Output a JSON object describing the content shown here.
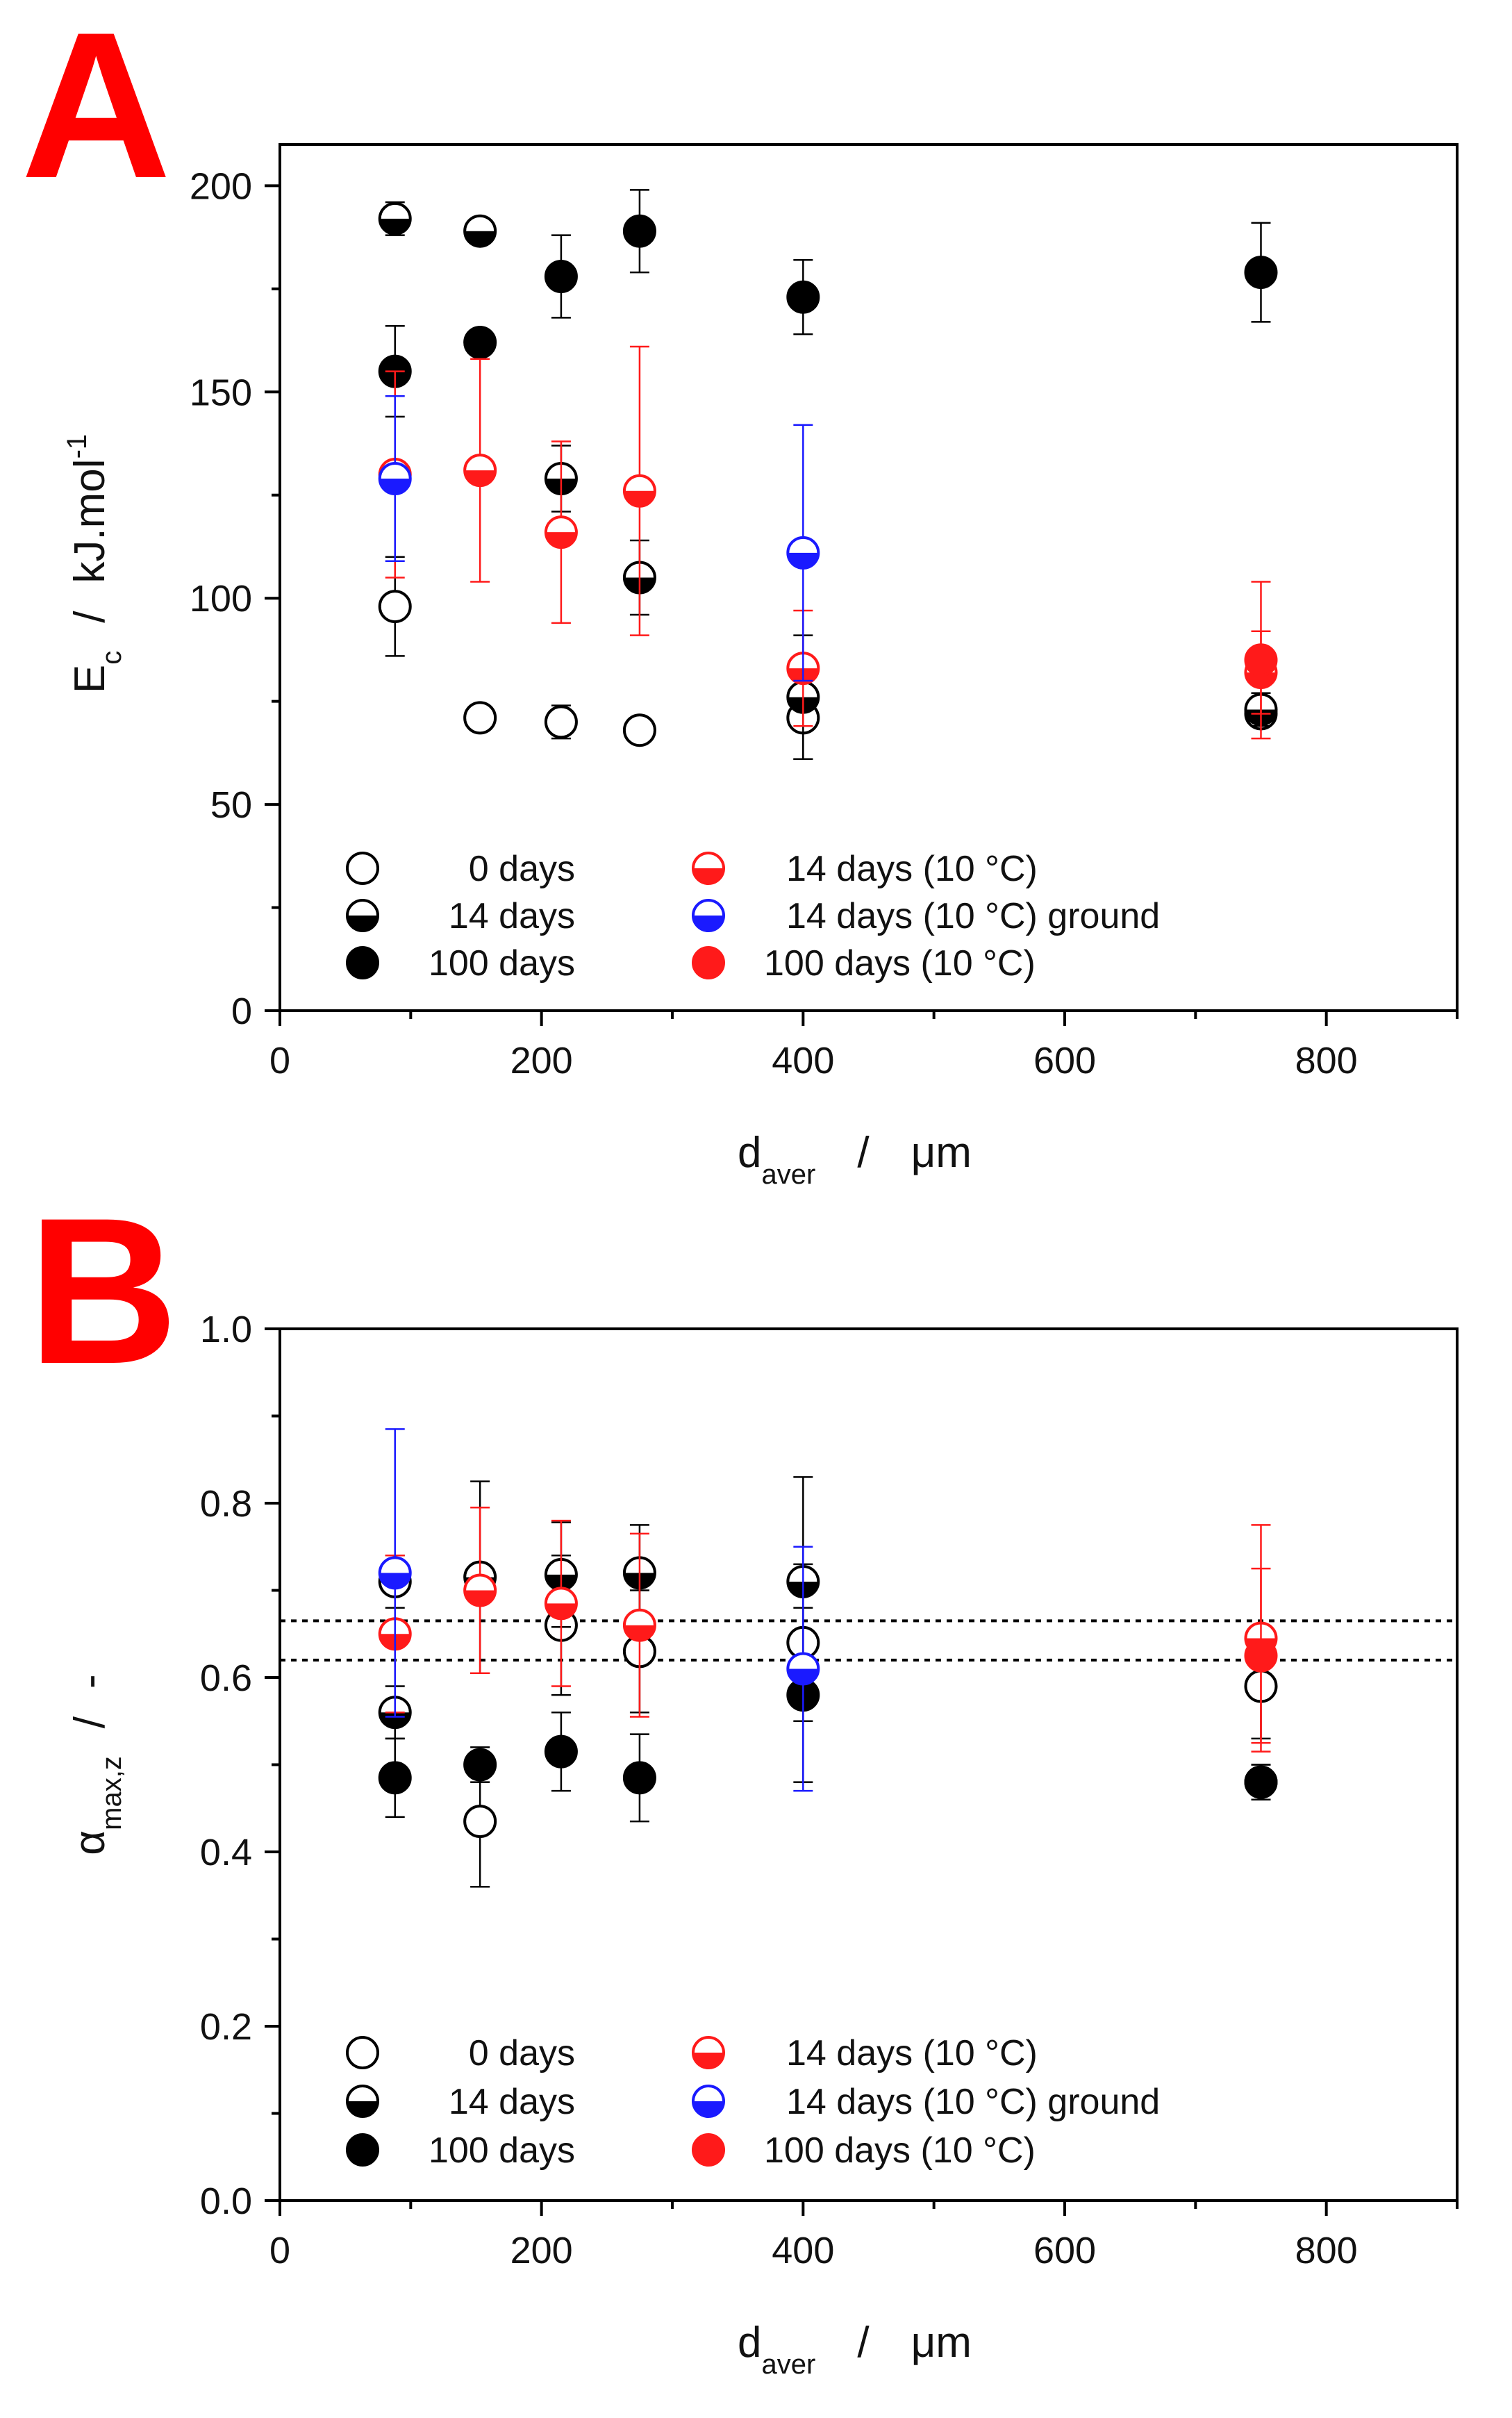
{
  "colors": {
    "black": "#000000",
    "red": "#ff1a1a",
    "blue": "#1a1aff",
    "letter": "#ff0000"
  },
  "legend": [
    {
      "label": "0 days",
      "style": "open",
      "color": "black"
    },
    {
      "label": "14 days",
      "style": "half",
      "color": "black"
    },
    {
      "label": "100 days",
      "style": "filled",
      "color": "black"
    },
    {
      "label": "14 days (10 °C)",
      "style": "half",
      "color": "red"
    },
    {
      "label": "14 days (10 °C) ground",
      "style": "half",
      "color": "blue"
    },
    {
      "label": "100 days (10 °C)",
      "style": "filled",
      "color": "red"
    }
  ],
  "chart_data": [
    {
      "type": "scatter",
      "panel_label": "A",
      "xlabel": "d",
      "xlabel_sub": "aver",
      "xlabel_unit": "μm",
      "ylabel": "E",
      "ylabel_sub": "c",
      "ylabel_unit": "kJ.mol",
      "ylabel_sup": "-1",
      "xlim": [
        0,
        900
      ],
      "ylim": [
        0,
        210
      ],
      "xticks": [
        0,
        200,
        400,
        600,
        800
      ],
      "yticks": [
        0,
        50,
        100,
        150,
        200
      ],
      "xtick_labels": [
        "0",
        "200",
        "400",
        "600",
        "800"
      ],
      "ytick_labels": [
        "0",
        "50",
        "100",
        "150",
        "200"
      ],
      "reference_lines": [],
      "series": [
        {
          "name": "0 days",
          "style": "open",
          "color": "black",
          "x": [
            88,
            153,
            215,
            275,
            400,
            750
          ],
          "y": [
            98,
            71,
            70,
            68,
            71,
            72
          ],
          "err": [
            12,
            3,
            4,
            3,
            10,
            3
          ]
        },
        {
          "name": "14 days",
          "style": "half",
          "color": "black",
          "x": [
            88,
            153,
            215,
            275,
            400,
            750
          ],
          "y": [
            192,
            189,
            129,
            105,
            76,
            73
          ],
          "err": [
            4,
            2,
            8,
            9,
            15,
            4
          ]
        },
        {
          "name": "100 days",
          "style": "filled",
          "color": "black",
          "x": [
            88,
            153,
            215,
            275,
            400,
            750
          ],
          "y": [
            155,
            162,
            178,
            189,
            173,
            179
          ],
          "err": [
            11,
            2,
            10,
            10,
            9,
            12
          ]
        },
        {
          "name": "14 days (10 °C)",
          "style": "half",
          "color": "red",
          "x": [
            88,
            153,
            215,
            275,
            400,
            750
          ],
          "y": [
            130,
            131,
            116,
            126,
            83,
            82
          ],
          "err": [
            25,
            27,
            22,
            35,
            14,
            10
          ]
        },
        {
          "name": "14 days (10 °C) ground",
          "style": "half",
          "color": "blue",
          "x": [
            88,
            400
          ],
          "y": [
            129,
            111
          ],
          "err": [
            20,
            31
          ]
        },
        {
          "name": "100 days (10 °C)",
          "style": "filled",
          "color": "red",
          "x": [
            750
          ],
          "y": [
            85
          ],
          "err": [
            19
          ]
        }
      ]
    },
    {
      "type": "scatter",
      "panel_label": "B",
      "xlabel": "d",
      "xlabel_sub": "aver",
      "xlabel_unit": "μm",
      "ylabel": "α",
      "ylabel_sub": "max,z",
      "ylabel_unit": "-",
      "ylabel_sup": "",
      "xlim": [
        0,
        900
      ],
      "ylim": [
        0,
        1.0
      ],
      "xticks": [
        0,
        200,
        400,
        600,
        800
      ],
      "yticks": [
        0,
        0.2,
        0.4,
        0.6,
        0.8,
        1.0
      ],
      "xtick_labels": [
        "0",
        "200",
        "400",
        "600",
        "800"
      ],
      "ytick_labels": [
        "0.0",
        "0.2",
        "0.4",
        "0.6",
        "0.8",
        "1.0"
      ],
      "reference_lines": [
        0.665,
        0.62
      ],
      "series": [
        {
          "name": "0 days",
          "style": "open",
          "color": "black",
          "x": [
            88,
            153,
            215,
            275,
            400,
            750
          ],
          "y": [
            0.71,
            0.435,
            0.66,
            0.63,
            0.64,
            0.59
          ],
          "err": [
            0.03,
            0.075,
            0.08,
            0.07,
            0.09,
            0.06
          ]
        },
        {
          "name": "14 days",
          "style": "half",
          "color": "black",
          "x": [
            88,
            153,
            215,
            275,
            400,
            750
          ],
          "y": [
            0.56,
            0.715,
            0.718,
            0.72,
            0.71,
            0.48
          ],
          "err": [
            0.03,
            0.11,
            0.06,
            0.055,
            0.12,
            0.02
          ]
        },
        {
          "name": "100 days",
          "style": "filled",
          "color": "black",
          "x": [
            88,
            153,
            215,
            275,
            400,
            750
          ],
          "y": [
            0.485,
            0.5,
            0.515,
            0.485,
            0.58,
            0.48
          ],
          "err": [
            0.045,
            0.02,
            0.045,
            0.05,
            0.1,
            0.02
          ]
        },
        {
          "name": "14 days (10 °C)",
          "style": "half",
          "color": "red",
          "x": [
            88,
            153,
            215,
            275,
            750
          ],
          "y": [
            0.65,
            0.7,
            0.685,
            0.66,
            0.645
          ],
          "err": [
            0.09,
            0.095,
            0.095,
            0.105,
            0.13
          ]
        },
        {
          "name": "14 days (10 °C) ground",
          "style": "half",
          "color": "blue",
          "x": [
            88,
            400
          ],
          "y": [
            0.72,
            0.61
          ],
          "err": [
            0.165,
            0.14
          ]
        },
        {
          "name": "100 days (10 °C)",
          "style": "filled",
          "color": "red",
          "x": [
            750
          ],
          "y": [
            0.625
          ],
          "err": [
            0.1
          ]
        }
      ]
    }
  ]
}
